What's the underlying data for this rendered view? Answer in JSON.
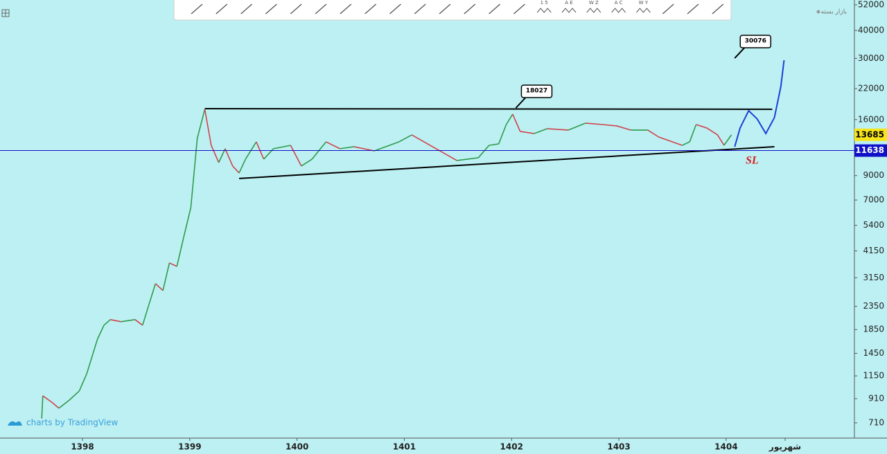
{
  "chart_data": {
    "type": "line",
    "log_scale": true,
    "xlim": [
      1397.231,
      1405.196
    ],
    "ylim": [
      607,
      54650
    ],
    "xticks": [
      1398,
      1399,
      1400,
      1401,
      1402,
      1403,
      1404,
      {
        "value": 1404.55,
        "label": "شهریور"
      }
    ],
    "yticks": [
      710,
      910,
      1150,
      1450,
      1850,
      2350,
      3150,
      4150,
      5400,
      7000,
      9000,
      16000,
      22000,
      30000,
      40000,
      52000
    ],
    "up_color": "#2e9a4a",
    "down_color": "#d0424a",
    "series": [
      {
        "x": [
          1397.62,
          1397.63,
          1397.72,
          1397.78,
          1397.88,
          1397.97,
          1398.04,
          1398.1,
          1398.14,
          1398.2,
          1398.26,
          1398.36,
          1398.49,
          1398.56,
          1398.62,
          1398.68,
          1398.75,
          1398.81,
          1398.88,
          1398.94,
          1399.01,
          1399.04,
          1399.07,
          1399.14,
          1399.2,
          1399.27,
          1399.33,
          1399.4,
          1399.46,
          1399.52,
          1399.62,
          1399.69,
          1399.78,
          1399.94,
          1400.04,
          1400.14,
          1400.27,
          1400.4,
          1400.53,
          1400.72,
          1400.95,
          1401.07,
          1401.24,
          1401.49,
          1401.69,
          1401.79,
          1401.88,
          1401.95,
          1402.01,
          1402.08,
          1402.21,
          1402.33,
          1402.53,
          1402.69,
          1402.85,
          1402.98,
          1403.11,
          1403.27,
          1403.37,
          1403.59,
          1403.66,
          1403.72,
          1403.82,
          1403.92,
          1403.98,
          1404.05
        ],
        "values": [
          742,
          937,
          873,
          825,
          899,
          985,
          1177,
          1457,
          1679,
          1935,
          2050,
          2007,
          2050,
          1935,
          2397,
          2965,
          2763,
          3669,
          3541,
          4707,
          6485,
          9245,
          13187,
          17784,
          12282,
          10291,
          11861,
          9927,
          9245,
          10660,
          12730,
          10660,
          11861,
          12282,
          9927,
          10660,
          12730,
          11861,
          12111,
          11601,
          12730,
          13671,
          12282,
          10509,
          10811,
          12282,
          12459,
          15200,
          16916,
          14160,
          13863,
          14570,
          14368,
          15428,
          15200,
          14992,
          14368,
          14368,
          13385,
          12282,
          12730,
          15200,
          14676,
          13671,
          12282,
          13685
        ]
      }
    ],
    "drawings": [
      {
        "color": "#000000",
        "x": [
          1399.14,
          1404.43
        ],
        "values": [
          17900,
          17784
        ]
      },
      {
        "color": "#000000",
        "x": [
          1399.46,
          1404.45
        ],
        "values": [
          8735,
          12111
        ]
      },
      {
        "color": "#1a3fd6",
        "x": [
          1404.08,
          1404.13,
          1404.21,
          1404.29,
          1404.37,
          1404.45,
          1404.51,
          1404.54
        ],
        "values": [
          12111,
          14676,
          17530,
          16096,
          13863,
          16328,
          22478,
          29449
        ]
      }
    ],
    "price_labels": [
      {
        "value": 13685,
        "color": "#f7e51c",
        "text_color": "#000000"
      },
      {
        "value": 11638,
        "color": "#1010c8",
        "text_color": "#ffffff",
        "line": true
      }
    ],
    "annotations": [
      {
        "x": 1402.04,
        "y": 18027
      },
      {
        "x": 1404.08,
        "y": 30076
      }
    ],
    "sl_label": "SL",
    "status": "بازار بسته",
    "watermark": "charts by TradingView",
    "toolbar_labels": [
      "1 5",
      "A E",
      "W Z",
      "A C",
      "W Y"
    ]
  }
}
